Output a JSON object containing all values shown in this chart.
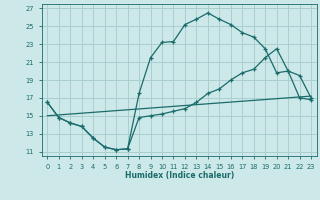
{
  "title": "",
  "xlabel": "Humidex (Indice chaleur)",
  "background_color": "#cce8e8",
  "grid_color": "#aacfcf",
  "line_color": "#1a6b6b",
  "xlim": [
    -0.5,
    23.5
  ],
  "ylim": [
    10.5,
    27.5
  ],
  "yticks": [
    11,
    13,
    15,
    17,
    19,
    21,
    23,
    25,
    27
  ],
  "xticks": [
    0,
    1,
    2,
    3,
    4,
    5,
    6,
    7,
    8,
    9,
    10,
    11,
    12,
    13,
    14,
    15,
    16,
    17,
    18,
    19,
    20,
    21,
    22,
    23
  ],
  "line1_x": [
    0,
    1,
    2,
    3,
    4,
    5,
    6,
    7,
    8,
    9,
    10,
    11,
    12,
    13,
    14,
    15,
    16,
    17,
    18,
    19,
    20,
    21,
    22,
    23
  ],
  "line1_y": [
    16.5,
    14.8,
    14.2,
    13.8,
    12.5,
    11.5,
    11.2,
    11.3,
    17.5,
    21.5,
    23.2,
    23.3,
    25.2,
    25.8,
    26.5,
    25.8,
    25.2,
    24.3,
    23.8,
    22.5,
    19.8,
    20.0,
    17.0,
    16.8
  ],
  "line2_x": [
    0,
    23
  ],
  "line2_y": [
    15.0,
    17.2
  ],
  "line3_x": [
    0,
    1,
    2,
    3,
    4,
    5,
    6,
    7,
    8,
    9,
    10,
    11,
    12,
    13,
    14,
    15,
    16,
    17,
    18,
    19,
    20,
    21,
    22,
    23
  ],
  "line3_y": [
    16.5,
    14.8,
    14.2,
    13.8,
    12.5,
    11.5,
    11.2,
    11.3,
    14.8,
    15.0,
    15.2,
    15.5,
    15.8,
    16.5,
    17.5,
    18.0,
    19.0,
    19.8,
    20.2,
    21.5,
    22.5,
    20.0,
    19.5,
    17.0
  ]
}
